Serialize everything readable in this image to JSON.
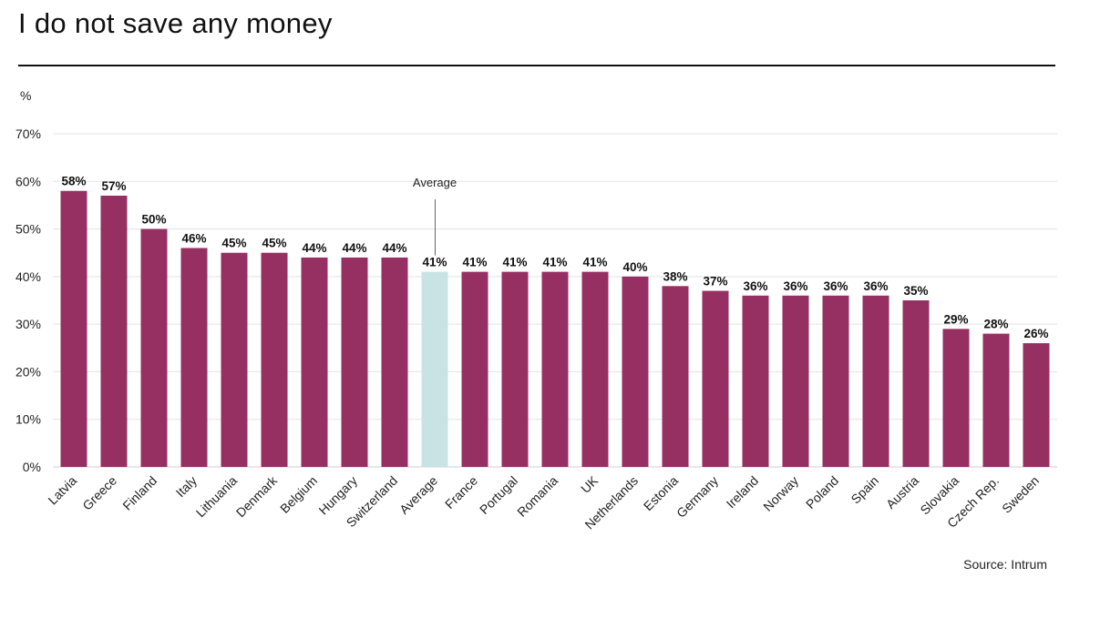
{
  "title": "I do not save any money",
  "unit_label": "%",
  "source": "Source: Intrum",
  "colors": {
    "bar": "#973062",
    "highlight": "#c9e3e5",
    "grid": "#e3e3e3",
    "axis": "#cfcfcf"
  },
  "chart_data": {
    "type": "bar",
    "title": "I do not save any money",
    "ylabel": "%",
    "xlabel": "",
    "ylim": [
      0,
      70
    ],
    "yticks": [
      "0%",
      "10%",
      "20%",
      "30%",
      "40%",
      "50%",
      "60%",
      "70%"
    ],
    "grid": true,
    "highlight_category": "Average",
    "annotation": "Average",
    "categories": [
      "Latvia",
      "Greece",
      "Finland",
      "Italy",
      "Lithuania",
      "Denmark",
      "Belgium",
      "Hungary",
      "Switzerland",
      "Average",
      "France",
      "Portugal",
      "Romania",
      "UK",
      "Netherlands",
      "Estonia",
      "Germany",
      "Ireland",
      "Norway",
      "Poland",
      "Spain",
      "Austria",
      "Slovakia",
      "Czech Rep.",
      "Sweden"
    ],
    "values": [
      58,
      57,
      50,
      46,
      45,
      45,
      44,
      44,
      44,
      41,
      41,
      41,
      41,
      41,
      40,
      38,
      37,
      36,
      36,
      36,
      36,
      35,
      29,
      28,
      26
    ],
    "data_labels": [
      "58%",
      "57%",
      "50%",
      "46%",
      "45%",
      "45%",
      "44%",
      "44%",
      "44%",
      "41%",
      "41%",
      "41%",
      "41%",
      "41%",
      "40%",
      "38%",
      "37%",
      "36%",
      "36%",
      "36%",
      "36%",
      "35%",
      "29%",
      "28%",
      "26%"
    ]
  }
}
